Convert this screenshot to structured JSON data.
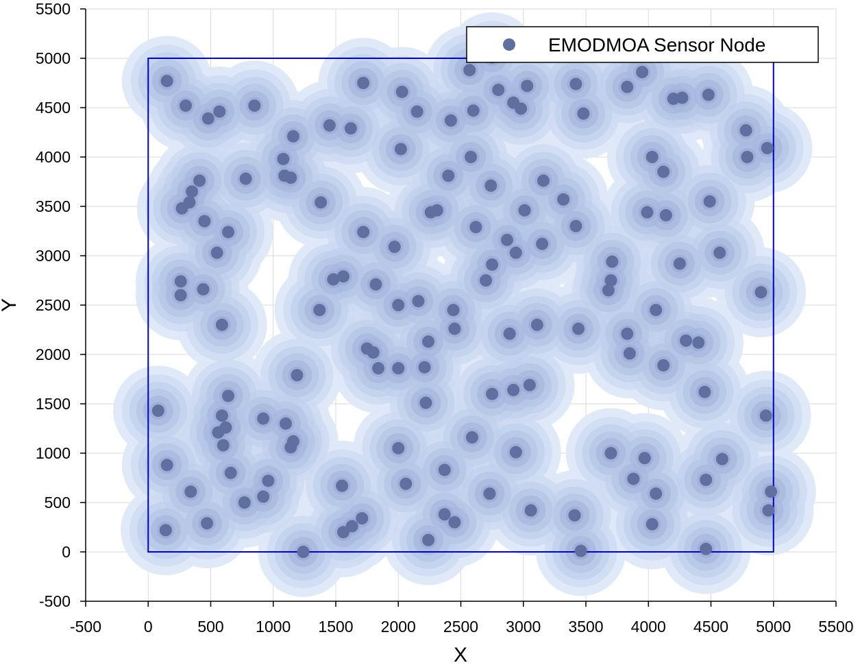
{
  "chart_data": {
    "type": "scatter",
    "title": "",
    "xlabel": "X",
    "ylabel": "Y",
    "xlim": [
      -500,
      5500
    ],
    "ylim": [
      -500,
      5500
    ],
    "xticks": [
      "-500",
      "0",
      "500",
      "1000",
      "1500",
      "2000",
      "2500",
      "3000",
      "3500",
      "4000",
      "4500",
      "5000",
      "5500"
    ],
    "yticks": [
      "-500",
      "0",
      "500",
      "1000",
      "1500",
      "2000",
      "2500",
      "3000",
      "3500",
      "4000",
      "4500",
      "5000",
      "5500"
    ],
    "grid": true,
    "legend_position": "top-right",
    "deployment_area": {
      "x": [
        0,
        5000
      ],
      "y": [
        0,
        5000
      ]
    },
    "colors": {
      "node": "#5f6f9f",
      "coverage_outer": "#dde8f8",
      "coverage_inner": "#b4c5e6",
      "area_border": "#0000cc",
      "grid": "#d9d9d9"
    },
    "series": [
      {
        "name": "EMODMOA Sensor Node",
        "points": [
          [
            150,
            4770
          ],
          [
            300,
            4520
          ],
          [
            480,
            4390
          ],
          [
            570,
            4460
          ],
          [
            850,
            4520
          ],
          [
            1450,
            4320
          ],
          [
            1620,
            4290
          ],
          [
            1720,
            4750
          ],
          [
            2030,
            4660
          ],
          [
            2150,
            4460
          ],
          [
            2420,
            4370
          ],
          [
            2570,
            4880
          ],
          [
            2600,
            4470
          ],
          [
            2750,
            5010
          ],
          [
            2800,
            4680
          ],
          [
            2920,
            4550
          ],
          [
            2980,
            4490
          ],
          [
            3030,
            4720
          ],
          [
            3420,
            4740
          ],
          [
            3480,
            4440
          ],
          [
            3830,
            4710
          ],
          [
            3950,
            4860
          ],
          [
            4200,
            4590
          ],
          [
            4270,
            4600
          ],
          [
            4480,
            4630
          ],
          [
            1160,
            4210
          ],
          [
            1080,
            3980
          ],
          [
            1090,
            3810
          ],
          [
            1140,
            3790
          ],
          [
            2020,
            4080
          ],
          [
            2400,
            3810
          ],
          [
            2580,
            4000
          ],
          [
            2740,
            3710
          ],
          [
            3160,
            3760
          ],
          [
            4030,
            4000
          ],
          [
            4120,
            3850
          ],
          [
            4780,
            4270
          ],
          [
            4790,
            4000
          ],
          [
            4950,
            4090
          ],
          [
            270,
            3480
          ],
          [
            330,
            3540
          ],
          [
            350,
            3650
          ],
          [
            410,
            3760
          ],
          [
            450,
            3350
          ],
          [
            780,
            3780
          ],
          [
            640,
            3240
          ],
          [
            550,
            3030
          ],
          [
            1380,
            3540
          ],
          [
            1720,
            3240
          ],
          [
            2260,
            3440
          ],
          [
            2310,
            3460
          ],
          [
            2620,
            3290
          ],
          [
            3010,
            3460
          ],
          [
            3320,
            3570
          ],
          [
            3420,
            3300
          ],
          [
            3150,
            3120
          ],
          [
            2870,
            3160
          ],
          [
            2940,
            3030
          ],
          [
            2750,
            2910
          ],
          [
            2700,
            2750
          ],
          [
            1970,
            3090
          ],
          [
            3990,
            3440
          ],
          [
            4140,
            3410
          ],
          [
            4490,
            3550
          ],
          [
            4250,
            2920
          ],
          [
            4570,
            3030
          ],
          [
            3710,
            2940
          ],
          [
            3700,
            2750
          ],
          [
            3680,
            2650
          ],
          [
            260,
            2740
          ],
          [
            260,
            2600
          ],
          [
            440,
            2660
          ],
          [
            590,
            2300
          ],
          [
            1480,
            2760
          ],
          [
            1560,
            2790
          ],
          [
            1370,
            2450
          ],
          [
            1820,
            2710
          ],
          [
            2000,
            2500
          ],
          [
            2160,
            2540
          ],
          [
            2440,
            2450
          ],
          [
            2450,
            2260
          ],
          [
            1750,
            2060
          ],
          [
            1800,
            2020
          ],
          [
            1840,
            1860
          ],
          [
            2000,
            1860
          ],
          [
            2210,
            1870
          ],
          [
            2240,
            2130
          ],
          [
            2890,
            2210
          ],
          [
            3110,
            2300
          ],
          [
            3440,
            2260
          ],
          [
            3830,
            2210
          ],
          [
            3850,
            2010
          ],
          [
            4060,
            2450
          ],
          [
            4120,
            1890
          ],
          [
            4300,
            2140
          ],
          [
            4400,
            2120
          ],
          [
            4900,
            2630
          ],
          [
            1190,
            1790
          ],
          [
            80,
            1430
          ],
          [
            640,
            1580
          ],
          [
            590,
            1380
          ],
          [
            620,
            1260
          ],
          [
            560,
            1210
          ],
          [
            600,
            1080
          ],
          [
            920,
            1350
          ],
          [
            1100,
            1300
          ],
          [
            1160,
            1120
          ],
          [
            1140,
            1060
          ],
          [
            2220,
            1510
          ],
          [
            2750,
            1600
          ],
          [
            2920,
            1640
          ],
          [
            3050,
            1690
          ],
          [
            2590,
            1160
          ],
          [
            2000,
            1050
          ],
          [
            2940,
            1010
          ],
          [
            3700,
            1000
          ],
          [
            3970,
            950
          ],
          [
            4450,
            1620
          ],
          [
            4940,
            1380
          ],
          [
            4590,
            940
          ],
          [
            150,
            880
          ],
          [
            340,
            610
          ],
          [
            470,
            290
          ],
          [
            660,
            800
          ],
          [
            960,
            720
          ],
          [
            920,
            560
          ],
          [
            770,
            500
          ],
          [
            1550,
            670
          ],
          [
            2060,
            690
          ],
          [
            2370,
            830
          ],
          [
            2730,
            590
          ],
          [
            2370,
            380
          ],
          [
            2450,
            300
          ],
          [
            1710,
            340
          ],
          [
            1630,
            260
          ],
          [
            1560,
            200
          ],
          [
            3060,
            420
          ],
          [
            3410,
            370
          ],
          [
            3880,
            740
          ],
          [
            4060,
            590
          ],
          [
            4460,
            730
          ],
          [
            4980,
            610
          ],
          [
            4960,
            420
          ],
          [
            4030,
            280
          ],
          [
            140,
            220
          ],
          [
            1240,
            0
          ],
          [
            2240,
            120
          ],
          [
            3460,
            10
          ],
          [
            4460,
            30
          ]
        ]
      }
    ]
  }
}
